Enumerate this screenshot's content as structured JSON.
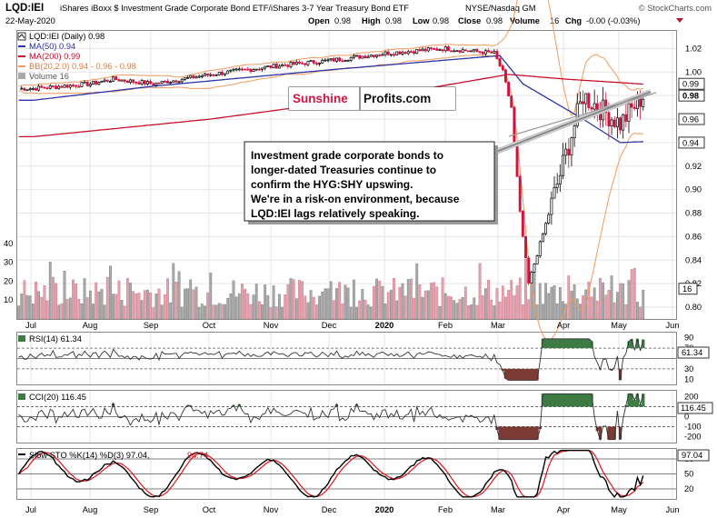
{
  "header": {
    "symbol": "LQD:IEI",
    "full_name": "iShares iBoxx $ Investment Grade Corporate Bond ETF/iShares 3-7 Year Treasury Bond ETF",
    "exchange": "NYSE/Nasdaq GM",
    "watermark": "© StockCharts.com",
    "date": "22-May-2020",
    "open_label": "Open",
    "open": "0.98",
    "high_label": "High",
    "high": "0.98",
    "low_label": "Low",
    "low": "0.98",
    "close_label": "Close",
    "close": "0.98",
    "volume_label": "Volume",
    "volume": "16",
    "chg_label": "Chg",
    "chg": "-0.00 (-0.03%)"
  },
  "colors": {
    "up": "#000000",
    "down": "#d11340",
    "ma50": "#2a35a8",
    "ma200": "#c8102e",
    "bb": "#f29a5c",
    "vol_up": "#a8a8a8",
    "vol_down": "#e7a1ae",
    "osc_pos": "#3e7a43",
    "osc_neg": "#7b3a34",
    "sto_k": "#000000",
    "sto_d": "#e0141e"
  },
  "legend": {
    "price": "LQD:IEI (Daily) 0.98",
    "ma50": "MA(50) 0.94",
    "ma200": "MA(200) 0.99",
    "bb": "BB(20,2.0) 0.94 - 0.96 - 0.98",
    "volume": "Volume 16"
  },
  "logo": {
    "part1": "Sunshine",
    "part2": "Profits.com"
  },
  "annotation": {
    "lines": [
      "Investment grade corporate bonds to",
      "longer-dated Treasuries continue to",
      "confirm the HYG:SHY upswing.",
      "We're in a risk-on environment, because",
      "LQD:IEI lags relatively speaking."
    ]
  },
  "indicators": {
    "rsi": {
      "label": "RSI(14) 61.34",
      "value_badge": "61.34",
      "ticks": [
        "90",
        "70",
        "30",
        "10"
      ]
    },
    "cci": {
      "label": "CCI(20) 116.45",
      "value_badge": "116.45",
      "ticks": [
        "200",
        "100",
        "0",
        "-100",
        "-200"
      ]
    },
    "sto": {
      "label_prefix": "Slow STO %K(14) %D(3) 97.04,",
      "label_d": "94.74",
      "value_badge": "97.04",
      "ticks": [
        "80",
        "50",
        "20"
      ]
    }
  },
  "chart_data": {
    "type": "candlestick",
    "x_axis": {
      "months": [
        "Jul",
        "Aug",
        "Sep",
        "Oct",
        "Nov",
        "Dec",
        "2020",
        "Feb",
        "Mar",
        "Apr",
        "May",
        "Jun"
      ]
    },
    "price_axis": {
      "ylim": [
        0.79,
        1.035
      ],
      "ticks": [
        "1.02",
        "1.00",
        "0.98",
        "0.96",
        "0.94",
        "0.92",
        "0.90",
        "0.88",
        "0.86",
        "0.84",
        "0.82",
        "0.80"
      ],
      "badges": [
        {
          "label": "0.99",
          "value": 0.99
        },
        {
          "label": "0.98",
          "value": 0.98
        },
        {
          "label": "0.96",
          "value": 0.96
        },
        {
          "label": "0.94",
          "value": 0.94
        }
      ]
    },
    "volume_axis": {
      "ylim": [
        0,
        50
      ],
      "ticks": [
        "40",
        "30",
        "20",
        "10"
      ],
      "badge": "16"
    },
    "price_anchors": [
      [
        "Jul",
        0.986
      ],
      [
        "Aug",
        0.99
      ],
      [
        "Aug",
        0.994
      ],
      [
        "Sep",
        0.99
      ],
      [
        "Oct",
        0.998
      ],
      [
        "Nov",
        1.005
      ],
      [
        "Dec",
        1.01
      ],
      [
        "2020",
        1.016
      ],
      [
        "Feb",
        1.02
      ],
      [
        "Mar",
        1.016
      ],
      [
        "Mar",
        1.0
      ],
      [
        "Mar",
        0.97
      ],
      [
        "Mar",
        0.88
      ],
      [
        "Mar",
        0.82
      ],
      [
        "Apr",
        0.93
      ],
      [
        "Apr",
        0.98
      ],
      [
        "May",
        0.956
      ],
      [
        "May",
        0.98
      ]
    ],
    "ma200_anchors": [
      [
        "Jul",
        0.945
      ],
      [
        "Oct",
        0.96
      ],
      [
        "2020",
        0.98
      ],
      [
        "Mar",
        0.998
      ],
      [
        "Apr",
        0.994
      ],
      [
        "Jun",
        0.988
      ]
    ],
    "ma50_anchors": [
      [
        "Jul",
        0.976
      ],
      [
        "Sep",
        0.988
      ],
      [
        "Dec",
        1.002
      ],
      [
        "Mar",
        1.014
      ],
      [
        "Mar",
        0.99
      ],
      [
        "Apr",
        0.96
      ],
      [
        "May",
        0.94
      ],
      [
        "Jun",
        0.942
      ]
    ]
  }
}
